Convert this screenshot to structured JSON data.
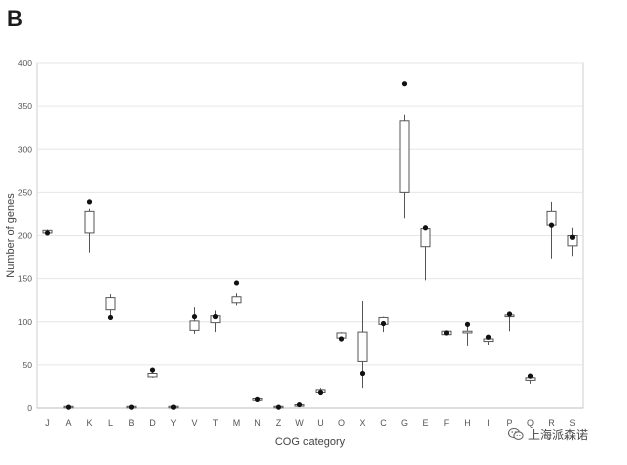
{
  "panel_label": "B",
  "watermark": {
    "icon": "wechat-icon",
    "text": "上海派森诺"
  },
  "chart_data": {
    "type": "box",
    "title": "",
    "xlabel": "COG category",
    "ylabel": "Number of genes",
    "ylim": [
      0,
      400
    ],
    "yticks": [
      0,
      50,
      100,
      150,
      200,
      250,
      300,
      350,
      400
    ],
    "grid": "horizontal",
    "categories": [
      "J",
      "A",
      "K",
      "L",
      "B",
      "D",
      "Y",
      "V",
      "T",
      "M",
      "N",
      "Z",
      "W",
      "U",
      "O",
      "X",
      "C",
      "G",
      "E",
      "F",
      "H",
      "I",
      "P",
      "Q",
      "R",
      "S"
    ],
    "boxes": [
      {
        "min": 202,
        "q1": 203,
        "q3": 206,
        "max": 207,
        "point": 203
      },
      {
        "min": 0,
        "q1": 1,
        "q3": 2,
        "max": 2,
        "point": 1
      },
      {
        "min": 180,
        "q1": 203,
        "q3": 228,
        "max": 231,
        "point": 239
      },
      {
        "min": 105,
        "q1": 114,
        "q3": 128,
        "max": 132,
        "point": 105
      },
      {
        "min": 0,
        "q1": 1,
        "q3": 2,
        "max": 2,
        "point": 1
      },
      {
        "min": 35,
        "q1": 36,
        "q3": 40,
        "max": 42,
        "point": 44
      },
      {
        "min": 0,
        "q1": 1,
        "q3": 2,
        "max": 2,
        "point": 1
      },
      {
        "min": 86,
        "q1": 90,
        "q3": 101,
        "max": 117,
        "point": 106
      },
      {
        "min": 88,
        "q1": 99,
        "q3": 107,
        "max": 113,
        "point": 106
      },
      {
        "min": 119,
        "q1": 122,
        "q3": 129,
        "max": 133,
        "point": 145
      },
      {
        "min": 8,
        "q1": 9,
        "q3": 11,
        "max": 12,
        "point": 10
      },
      {
        "min": 0,
        "q1": 1,
        "q3": 2,
        "max": 2,
        "point": 1
      },
      {
        "min": 2,
        "q1": 3,
        "q3": 4,
        "max": 5,
        "point": 4
      },
      {
        "min": 16,
        "q1": 18,
        "q3": 21,
        "max": 23,
        "point": 18
      },
      {
        "min": 80,
        "q1": 81,
        "q3": 87,
        "max": 88,
        "point": 80
      },
      {
        "min": 23,
        "q1": 54,
        "q3": 88,
        "max": 124,
        "point": 40
      },
      {
        "min": 88,
        "q1": 97,
        "q3": 105,
        "max": 106,
        "point": 98
      },
      {
        "min": 220,
        "q1": 250,
        "q3": 333,
        "max": 340,
        "point": 376
      },
      {
        "min": 148,
        "q1": 187,
        "q3": 208,
        "max": 210,
        "point": 209
      },
      {
        "min": 84,
        "q1": 85,
        "q3": 89,
        "max": 90,
        "point": 87
      },
      {
        "min": 72,
        "q1": 87,
        "q3": 89,
        "max": 96,
        "point": 97
      },
      {
        "min": 73,
        "q1": 77,
        "q3": 80,
        "max": 84,
        "point": 82
      },
      {
        "min": 89,
        "q1": 106,
        "q3": 108,
        "max": 111,
        "point": 109
      },
      {
        "min": 28,
        "q1": 32,
        "q3": 35,
        "max": 37,
        "point": 37
      },
      {
        "min": 173,
        "q1": 212,
        "q3": 228,
        "max": 239,
        "point": 212
      },
      {
        "min": 176,
        "q1": 188,
        "q3": 200,
        "max": 209,
        "point": 198
      }
    ]
  }
}
